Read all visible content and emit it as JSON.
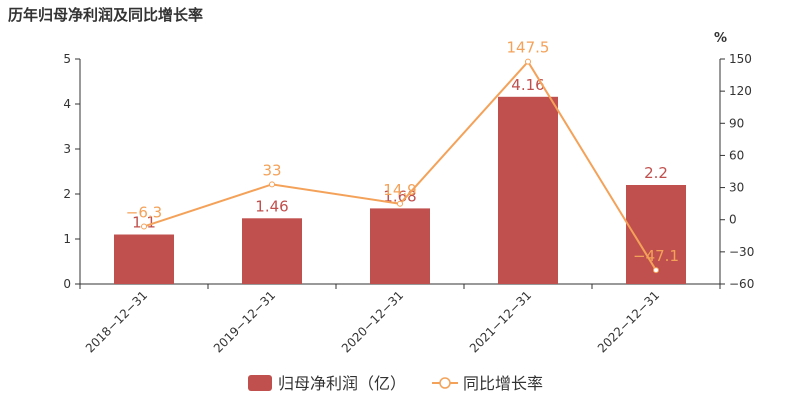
{
  "chart_data": {
    "type": "bar",
    "title": "历年归母净利润及同比增长率",
    "categories": [
      "2018-12-31",
      "2019-12-31",
      "2020-12-31",
      "2021-12-31",
      "2022-12-31"
    ],
    "bar_series": {
      "name": "归母净利润（亿）",
      "values": [
        1.1,
        1.46,
        1.68,
        4.16,
        2.2
      ],
      "labels": [
        "1.1",
        "1.46",
        "1.68",
        "4.16",
        "2.2"
      ],
      "color": "#c0504d"
    },
    "line_series": {
      "name": "同比增长率",
      "values": [
        -6.3,
        33,
        14.9,
        147.5,
        -47.1
      ],
      "labels": [
        "-6.3",
        "33",
        "14.9",
        "147.5",
        "-47.1"
      ],
      "color": "#f4a259"
    },
    "y_left": {
      "range": [
        0,
        5
      ],
      "ticks": [
        "0",
        "1",
        "2",
        "3",
        "4",
        "5"
      ]
    },
    "y_right": {
      "unit": "%",
      "range": [
        -60,
        150
      ],
      "ticks": [
        "-60",
        "-30",
        "0",
        "30",
        "60",
        "90",
        "120",
        "150"
      ]
    },
    "legend": {
      "placement": "bottom"
    },
    "grid": false
  }
}
